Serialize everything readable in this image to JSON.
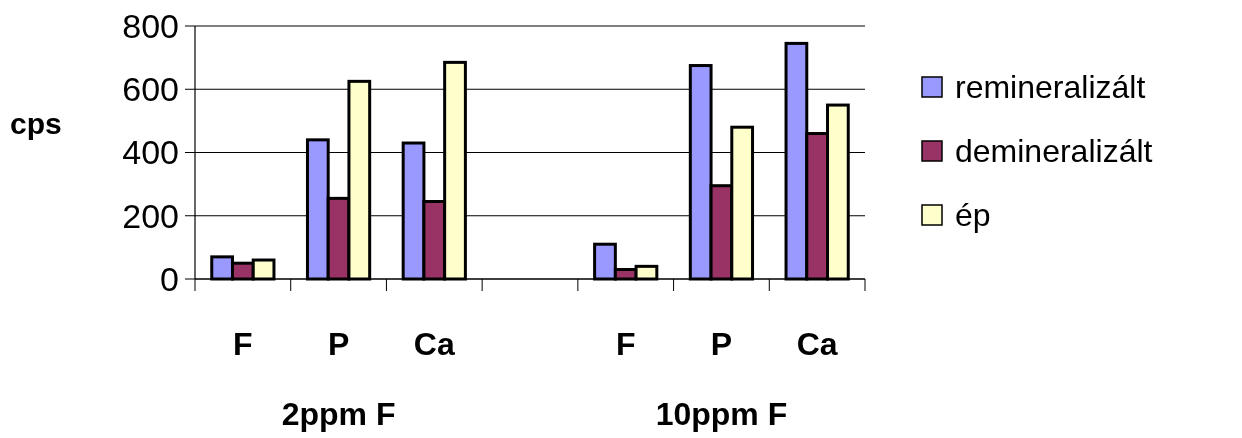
{
  "chart_data": {
    "type": "bar",
    "ylabel": "cps",
    "categories": [
      "F",
      "P",
      "Ca",
      null,
      "F",
      "P",
      "Ca"
    ],
    "series": [
      {
        "name": "remineralizált",
        "color": "#9999ff",
        "values": [
          70,
          440,
          430,
          null,
          110,
          675,
          745
        ]
      },
      {
        "name": "demineralizált",
        "color": "#993366",
        "values": [
          50,
          255,
          245,
          null,
          30,
          295,
          460
        ]
      },
      {
        "name": "ép",
        "color": "#ffffcc",
        "values": [
          60,
          625,
          685,
          null,
          40,
          480,
          550
        ]
      }
    ],
    "ylim": [
      0,
      800
    ],
    "yticks": [
      0,
      200,
      400,
      600,
      800
    ],
    "grid": "y",
    "legend": "right",
    "annotations": [
      "2ppm F",
      "10ppm F"
    ]
  }
}
